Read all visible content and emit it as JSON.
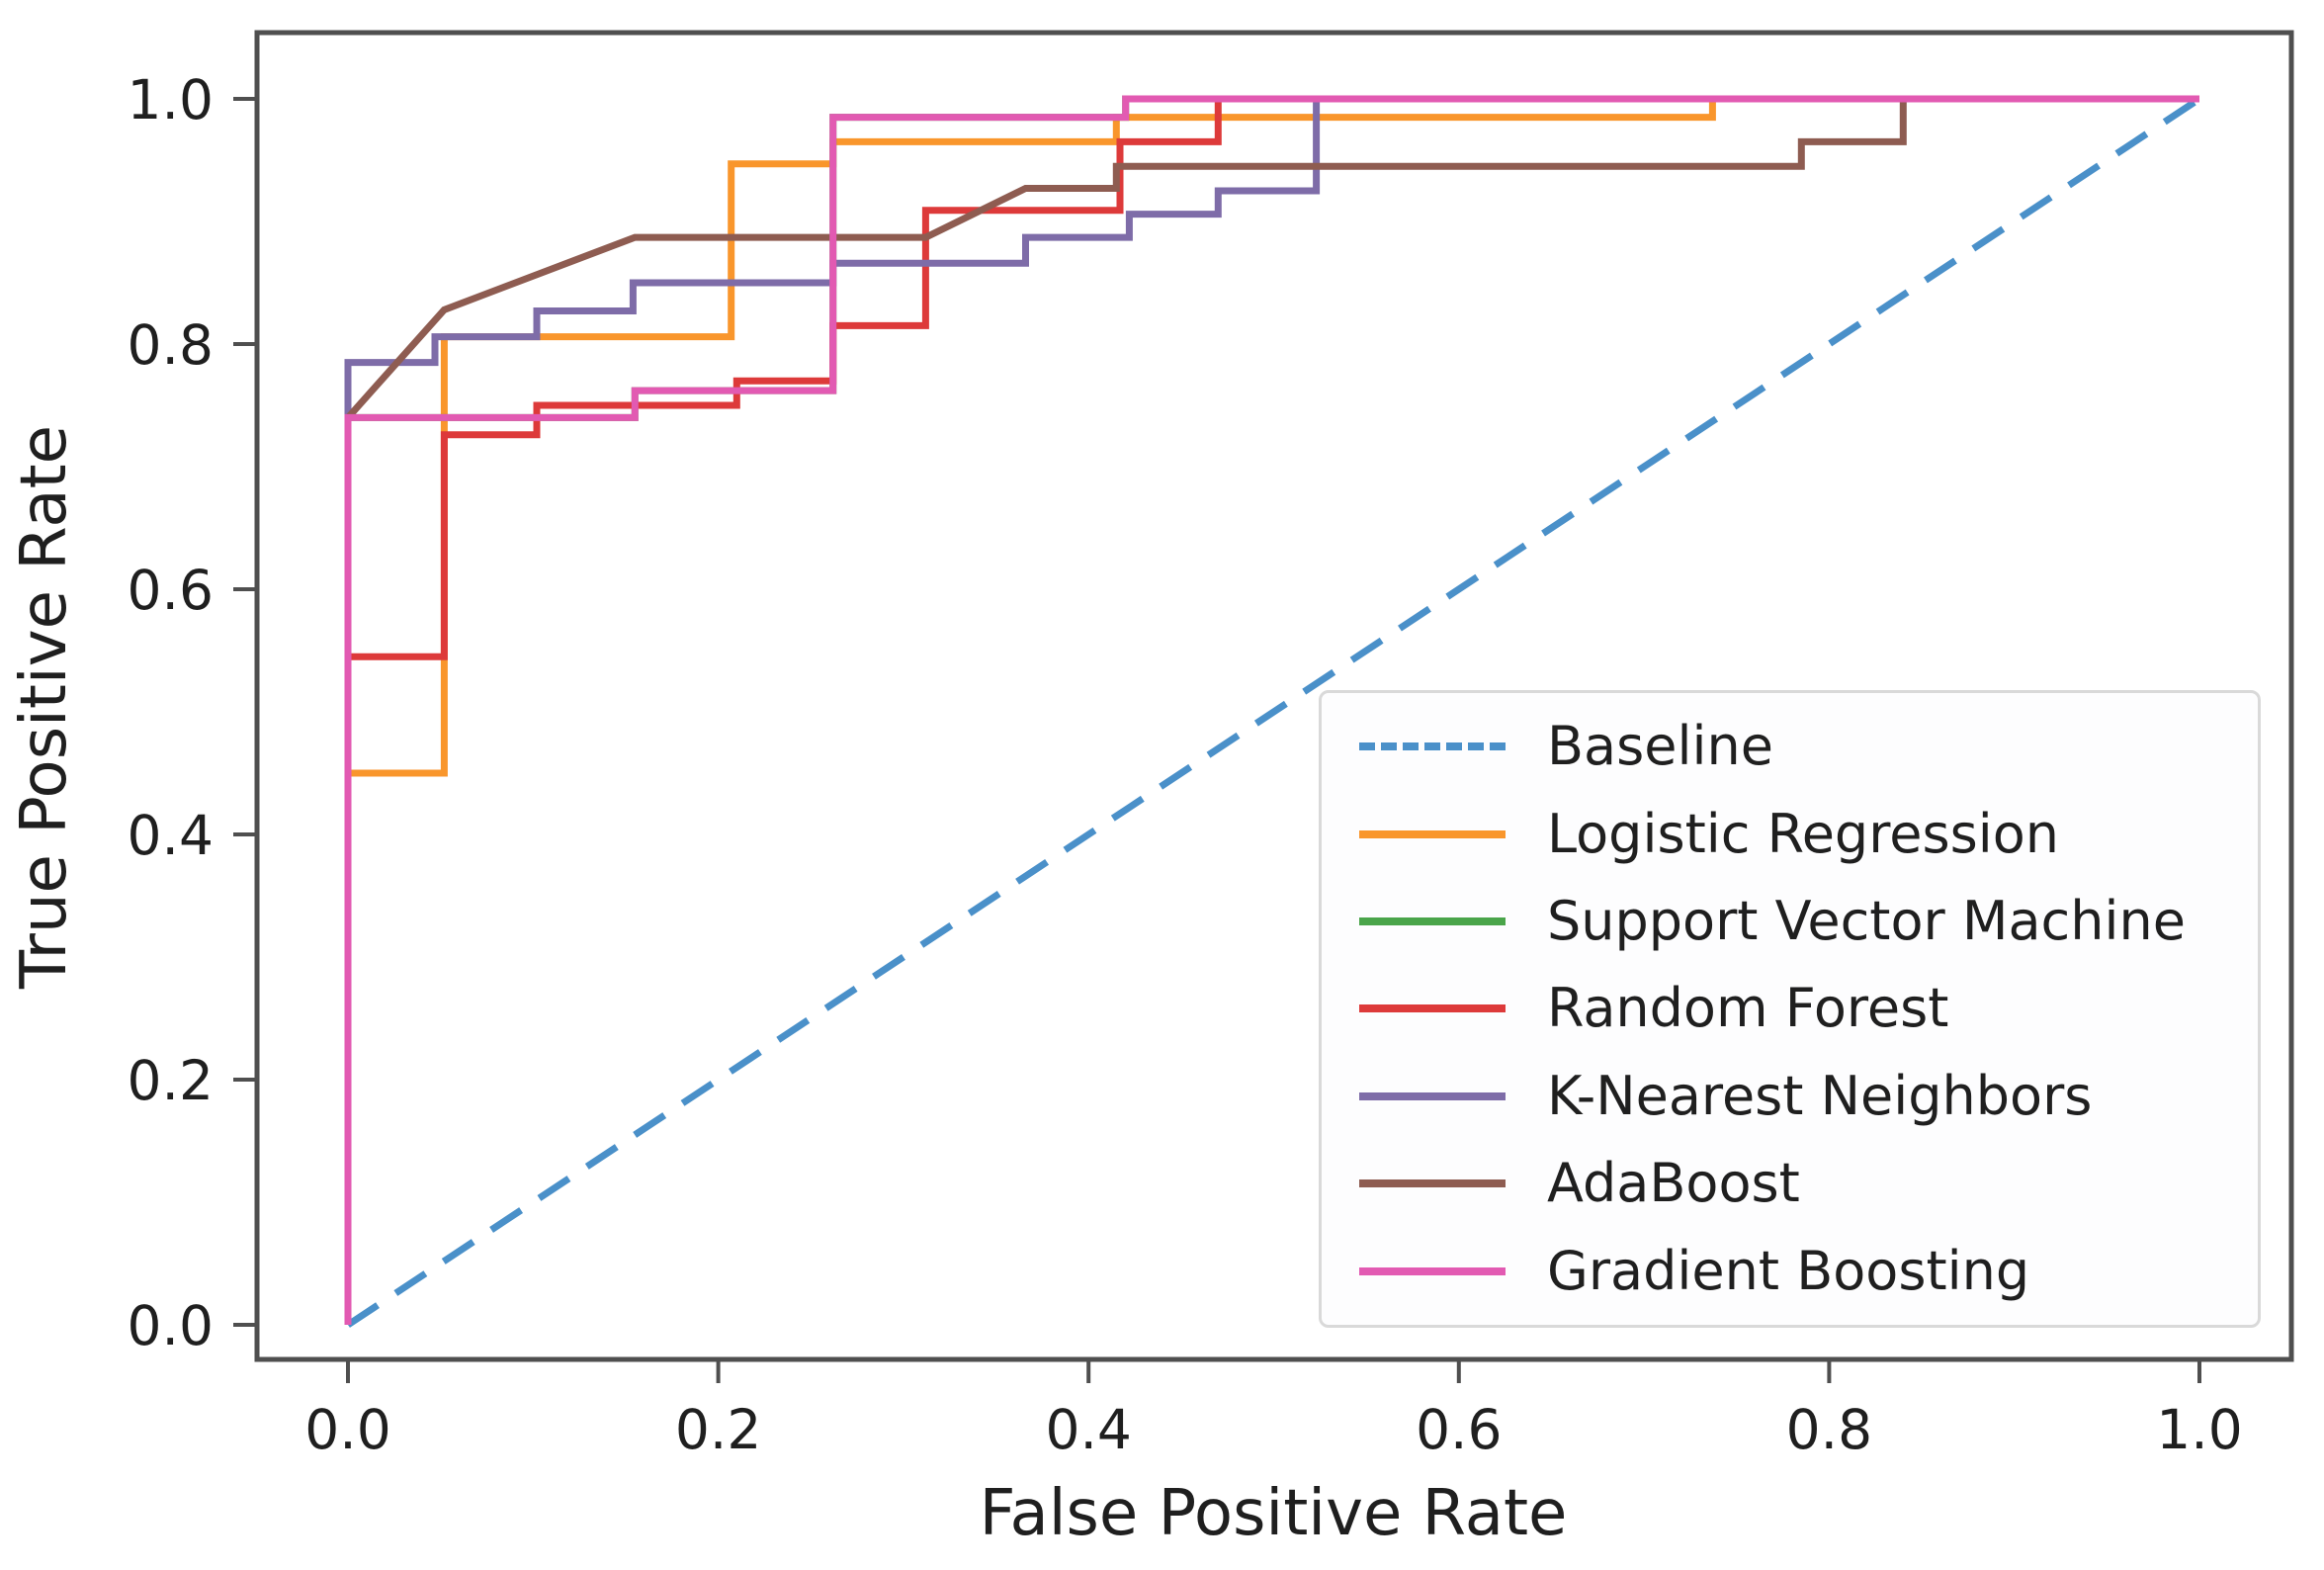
{
  "chart_data": {
    "type": "line",
    "title": "",
    "xlabel": "False Positive Rate",
    "ylabel": "True Positive Rate",
    "xlim": [
      -0.05,
      1.05
    ],
    "ylim": [
      -0.05,
      1.05
    ],
    "x_ticks": [
      "0.0",
      "0.2",
      "0.4",
      "0.6",
      "0.8",
      "1.0"
    ],
    "y_ticks": [
      "0.0",
      "0.2",
      "0.4",
      "0.6",
      "0.8",
      "1.0"
    ],
    "grid": false,
    "legend_position": "lower right",
    "series": [
      {
        "name": "Baseline",
        "color": "#4a90c9",
        "style": "dashed",
        "points": [
          [
            0,
            0
          ],
          [
            1,
            1
          ]
        ]
      },
      {
        "name": "Logistic Regression",
        "color": "#f9962c",
        "style": "solid",
        "points": [
          [
            0,
            0
          ],
          [
            0,
            0.45
          ],
          [
            0.052,
            0.45
          ],
          [
            0.052,
            0.806
          ],
          [
            0.207,
            0.806
          ],
          [
            0.207,
            0.947
          ],
          [
            0.262,
            0.947
          ],
          [
            0.262,
            0.965
          ],
          [
            0.415,
            0.965
          ],
          [
            0.415,
            0.985
          ],
          [
            0.737,
            0.985
          ],
          [
            0.737,
            1.0
          ],
          [
            1,
            1
          ]
        ]
      },
      {
        "name": "Support Vector Machine",
        "color": "#4aa54a",
        "style": "solid",
        "points": [
          [
            0,
            0
          ],
          [
            0,
            0.74
          ],
          [
            0.155,
            0.74
          ],
          [
            0.155,
            0.762
          ],
          [
            0.262,
            0.762
          ],
          [
            0.262,
            0.985
          ],
          [
            0.42,
            0.985
          ],
          [
            0.42,
            1.0
          ],
          [
            1,
            1
          ]
        ]
      },
      {
        "name": "Random Forest",
        "color": "#dd3a3a",
        "style": "solid",
        "points": [
          [
            0,
            0
          ],
          [
            0,
            0.545
          ],
          [
            0.052,
            0.545
          ],
          [
            0.052,
            0.726
          ],
          [
            0.102,
            0.726
          ],
          [
            0.102,
            0.75
          ],
          [
            0.21,
            0.75
          ],
          [
            0.21,
            0.77
          ],
          [
            0.262,
            0.77
          ],
          [
            0.262,
            0.815
          ],
          [
            0.312,
            0.815
          ],
          [
            0.312,
            0.909
          ],
          [
            0.417,
            0.909
          ],
          [
            0.417,
            0.965
          ],
          [
            0.47,
            0.965
          ],
          [
            0.47,
            1.0
          ],
          [
            1,
            1
          ]
        ]
      },
      {
        "name": "K-Nearest Neighbors",
        "color": "#7e6ca8",
        "style": "solid",
        "points": [
          [
            0,
            0
          ],
          [
            0,
            0.785
          ],
          [
            0.047,
            0.785
          ],
          [
            0.047,
            0.806
          ],
          [
            0.102,
            0.806
          ],
          [
            0.102,
            0.827
          ],
          [
            0.154,
            0.827
          ],
          [
            0.154,
            0.85
          ],
          [
            0.262,
            0.85
          ],
          [
            0.262,
            0.866
          ],
          [
            0.366,
            0.866
          ],
          [
            0.366,
            0.887
          ],
          [
            0.422,
            0.887
          ],
          [
            0.422,
            0.906
          ],
          [
            0.47,
            0.906
          ],
          [
            0.47,
            0.925
          ],
          [
            0.523,
            0.925
          ],
          [
            0.523,
            1.0
          ],
          [
            1,
            1
          ]
        ]
      },
      {
        "name": "AdaBoost",
        "color": "#8e5c51",
        "style": "solid",
        "points": [
          [
            0,
            0
          ],
          [
            0,
            0.74
          ],
          [
            0.052,
            0.828
          ],
          [
            0.155,
            0.887
          ],
          [
            0.312,
            0.887
          ],
          [
            0.366,
            0.927
          ],
          [
            0.415,
            0.927
          ],
          [
            0.415,
            0.945
          ],
          [
            0.785,
            0.945
          ],
          [
            0.785,
            0.965
          ],
          [
            0.84,
            0.965
          ],
          [
            0.84,
            1.0
          ],
          [
            1,
            1
          ]
        ]
      },
      {
        "name": "Gradient Boosting",
        "color": "#e25ab2",
        "style": "solid",
        "points": [
          [
            0,
            0
          ],
          [
            0,
            0.74
          ],
          [
            0.155,
            0.74
          ],
          [
            0.155,
            0.762
          ],
          [
            0.262,
            0.762
          ],
          [
            0.262,
            0.985
          ],
          [
            0.42,
            0.985
          ],
          [
            0.42,
            1.0
          ],
          [
            1,
            1
          ]
        ]
      }
    ]
  },
  "legend": {
    "entries": [
      {
        "label": "Baseline"
      },
      {
        "label": "Logistic Regression"
      },
      {
        "label": "Support Vector Machine"
      },
      {
        "label": "Random Forest"
      },
      {
        "label": "K-Nearest Neighbors"
      },
      {
        "label": "AdaBoost"
      },
      {
        "label": "Gradient Boosting"
      }
    ]
  }
}
